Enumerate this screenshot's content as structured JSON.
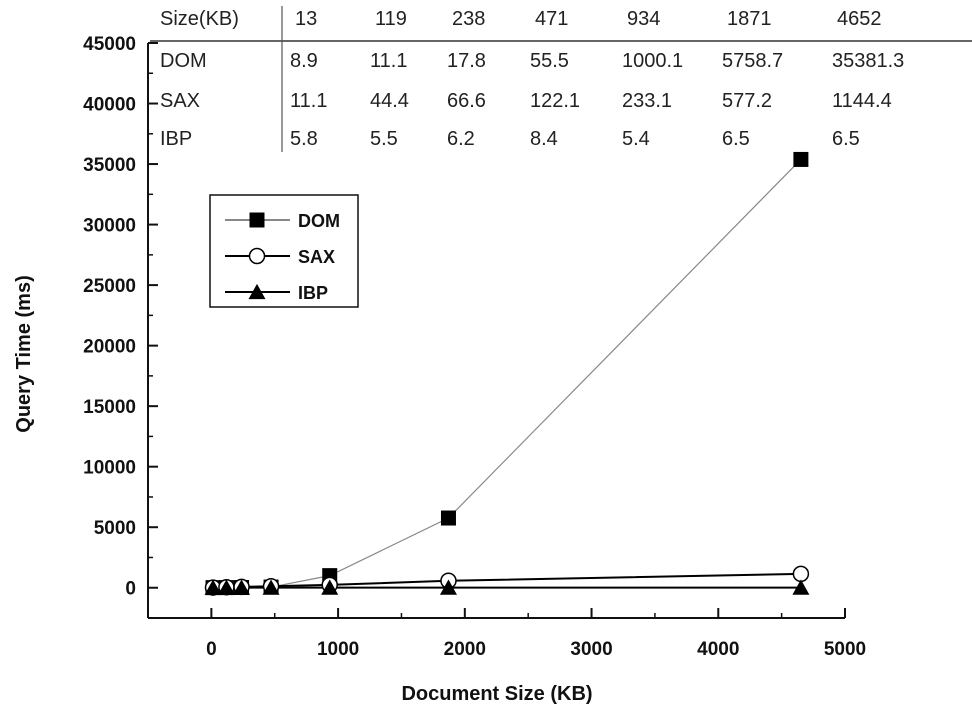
{
  "chart_data": {
    "type": "line",
    "xlabel": "Document Size (KB)",
    "ylabel": "Query Time (ms)",
    "xlim": [
      -500,
      5000
    ],
    "ylim": [
      -2500,
      45000
    ],
    "xticks": [
      0,
      1000,
      2000,
      3000,
      4000,
      5000
    ],
    "yticks": [
      0,
      5000,
      10000,
      15000,
      20000,
      25000,
      30000,
      35000,
      40000,
      45000
    ],
    "x": [
      13,
      119,
      238,
      471,
      934,
      1871,
      4652
    ],
    "series": [
      {
        "name": "DOM",
        "marker": "filled-square",
        "color": "#888888",
        "values": [
          8.9,
          11.1,
          17.8,
          55.5,
          1000.1,
          5758.7,
          35381.3
        ]
      },
      {
        "name": "SAX",
        "marker": "open-circle",
        "color": "#000000",
        "values": [
          11.1,
          44.4,
          66.6,
          122.1,
          233.1,
          577.2,
          1144.4
        ]
      },
      {
        "name": "IBP",
        "marker": "filled-triangle",
        "color": "#000000",
        "values": [
          5.8,
          5.5,
          6.2,
          8.4,
          5.4,
          6.5,
          6.5
        ]
      }
    ],
    "legend_position": "upper-left",
    "table": {
      "header": [
        "Size(KB)",
        "13",
        "119",
        "238",
        "471",
        "934",
        "1871",
        "4652"
      ],
      "rows": [
        [
          "DOM",
          "8.9",
          "11.1",
          "17.8",
          "55.5",
          "1000.1",
          "5758.7",
          "35381.3"
        ],
        [
          "SAX",
          "11.1",
          "44.4",
          "66.6",
          "122.1",
          "233.1",
          "577.2",
          "1144.4"
        ],
        [
          "IBP",
          "5.8",
          "5.5",
          "6.2",
          "8.4",
          "5.4",
          "6.5",
          "6.5"
        ]
      ]
    }
  }
}
